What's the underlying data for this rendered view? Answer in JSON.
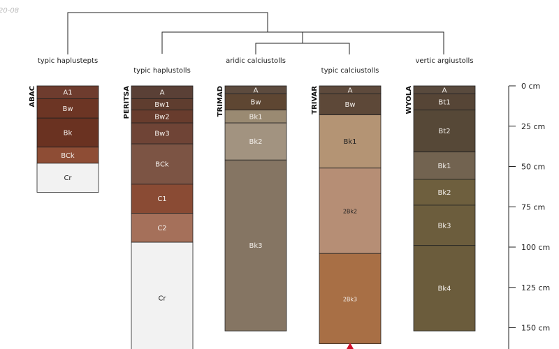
{
  "corner_label": "20-08",
  "depth_unit": "cm",
  "depth_ticks": [
    0,
    25,
    50,
    75,
    100,
    125,
    150
  ],
  "profiles": [
    {
      "name": "ABAC",
      "taxon": "typic haplustepts",
      "horizons": [
        {
          "name": "A1",
          "top": 0,
          "bottom": 8,
          "color": "#6e3c2e"
        },
        {
          "name": "Bw",
          "top": 8,
          "bottom": 20,
          "color": "#6c3524"
        },
        {
          "name": "Bk",
          "top": 20,
          "bottom": 38,
          "color": "#6a3221"
        },
        {
          "name": "BCk",
          "top": 38,
          "bottom": 48,
          "color": "#8e4d35"
        },
        {
          "name": "Cr",
          "top": 48,
          "bottom": 66,
          "color": "#f2f2f2"
        }
      ]
    },
    {
      "name": "PERITSA",
      "taxon": "typic haplustolls",
      "horizons": [
        {
          "name": "A",
          "top": 0,
          "bottom": 8,
          "color": "#5a4036"
        },
        {
          "name": "Bw1",
          "top": 8,
          "bottom": 15,
          "color": "#5f3d2f"
        },
        {
          "name": "Bw2",
          "top": 15,
          "bottom": 23,
          "color": "#683c2d"
        },
        {
          "name": "Bw3",
          "top": 23,
          "bottom": 36,
          "color": "#6f4436"
        },
        {
          "name": "BCk",
          "top": 36,
          "bottom": 61,
          "color": "#7c5444"
        },
        {
          "name": "C1",
          "top": 61,
          "bottom": 79,
          "color": "#8a4b34"
        },
        {
          "name": "C2",
          "top": 79,
          "bottom": 97,
          "color": "#a5705a"
        },
        {
          "name": "Cr",
          "top": 97,
          "bottom": 166,
          "color": "#f2f2f2"
        }
      ]
    },
    {
      "name": "TRIMAD",
      "taxon": "aridic calciustolls",
      "horizons": [
        {
          "name": "A",
          "top": 0,
          "bottom": 5,
          "color": "#5d4b3e"
        },
        {
          "name": "Bw",
          "top": 5,
          "bottom": 15,
          "color": "#5e4632"
        },
        {
          "name": "Bk1",
          "top": 15,
          "bottom": 23,
          "color": "#9a8a72"
        },
        {
          "name": "Bk2",
          "top": 23,
          "bottom": 46,
          "color": "#a29380"
        },
        {
          "name": "Bk3",
          "top": 46,
          "bottom": 152,
          "color": "#857563"
        }
      ]
    },
    {
      "name": "TRIVAR",
      "taxon": "typic calciustolls",
      "horizons": [
        {
          "name": "A",
          "top": 0,
          "bottom": 5,
          "color": "#5e4a3c"
        },
        {
          "name": "Bw",
          "top": 5,
          "bottom": 18,
          "color": "#5d4838"
        },
        {
          "name": "Bk1",
          "top": 18,
          "bottom": 51,
          "color": "#b49474"
        },
        {
          "name": "2Bk2",
          "top": 51,
          "bottom": 104,
          "color": "#b68e75"
        },
        {
          "name": "2Bk3",
          "top": 104,
          "bottom": 160,
          "color": "#a86f45"
        }
      ]
    },
    {
      "name": "WYOLA",
      "taxon": "vertic argiustolls",
      "horizons": [
        {
          "name": "A",
          "top": 0,
          "bottom": 5,
          "color": "#594a3d"
        },
        {
          "name": "Bt1",
          "top": 5,
          "bottom": 15,
          "color": "#564536"
        },
        {
          "name": "Bt2",
          "top": 15,
          "bottom": 41,
          "color": "#564837"
        },
        {
          "name": "Bk1",
          "top": 41,
          "bottom": 58,
          "color": "#726350"
        },
        {
          "name": "Bk2",
          "top": 58,
          "bottom": 74,
          "color": "#6e5f3e"
        },
        {
          "name": "Bk3",
          "top": 74,
          "bottom": 99,
          "color": "#6c5d3d"
        },
        {
          "name": "Bk4",
          "top": 99,
          "bottom": 152,
          "color": "#6b5c3c"
        }
      ]
    }
  ]
}
